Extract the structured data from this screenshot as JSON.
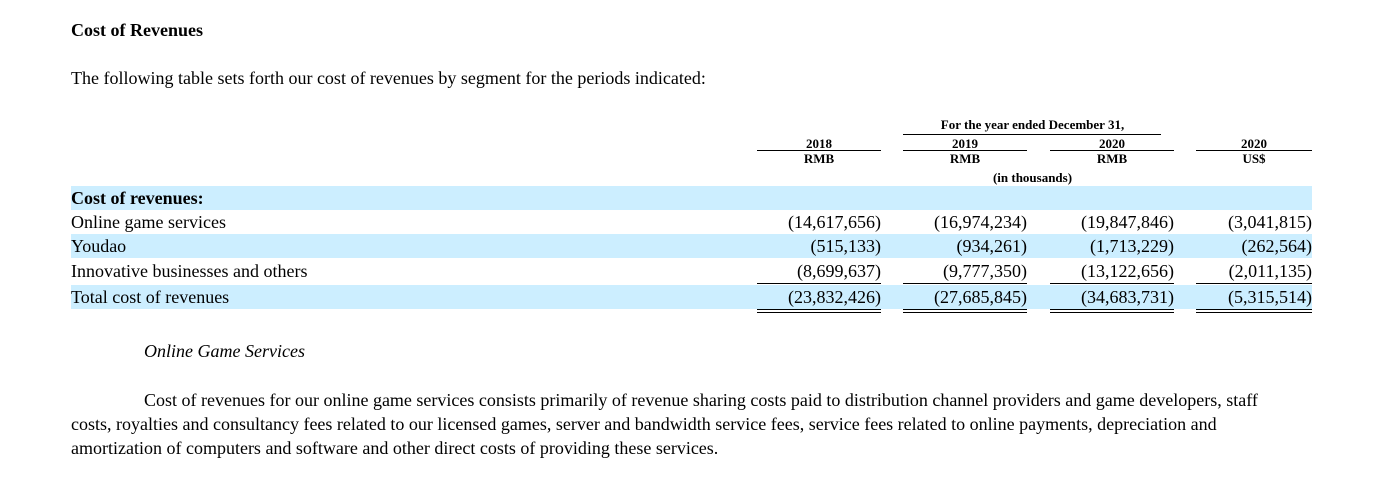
{
  "section_title": "Cost of Revenues",
  "intro_text": "The following table sets forth our cost of revenues by segment for the periods indicated:",
  "table": {
    "period_header": "For the year ended December 31,",
    "columns": [
      {
        "year": "2018",
        "currency": "RMB"
      },
      {
        "year": "2019",
        "currency": "RMB"
      },
      {
        "year": "2020",
        "currency": "RMB"
      },
      {
        "year": "2020",
        "currency": "US$"
      }
    ],
    "unit_note": "(in thousands)",
    "group_label": "Cost of revenues:",
    "rows": [
      {
        "label": "Online game services",
        "values": [
          "(14,617,656)",
          "(16,974,234)",
          "(19,847,846)",
          "(3,041,815)"
        ]
      },
      {
        "label": "Youdao",
        "values": [
          "(515,133)",
          "(934,261)",
          "(1,713,229)",
          "(262,564)"
        ]
      },
      {
        "label": "Innovative businesses and others",
        "values": [
          "(8,699,637)",
          "(9,777,350)",
          "(13,122,656)",
          "(2,011,135)"
        ]
      },
      {
        "label": "Total cost of revenues",
        "values": [
          "(23,832,426)",
          "(27,685,845)",
          "(34,683,731)",
          "(5,315,514)"
        ]
      }
    ]
  },
  "subheading": "Online Game Services",
  "paragraph": "Cost of revenues for our online game services consists primarily of revenue sharing costs paid to distribution channel providers and game developers, staff costs, royalties and consultancy fees related to our licensed games, server and bandwidth service fees, service fees related to online payments, depreciation and amortization of computers and software and other direct costs of providing these services.",
  "colors": {
    "row_shade": "#cceeff",
    "text": "#000000"
  }
}
